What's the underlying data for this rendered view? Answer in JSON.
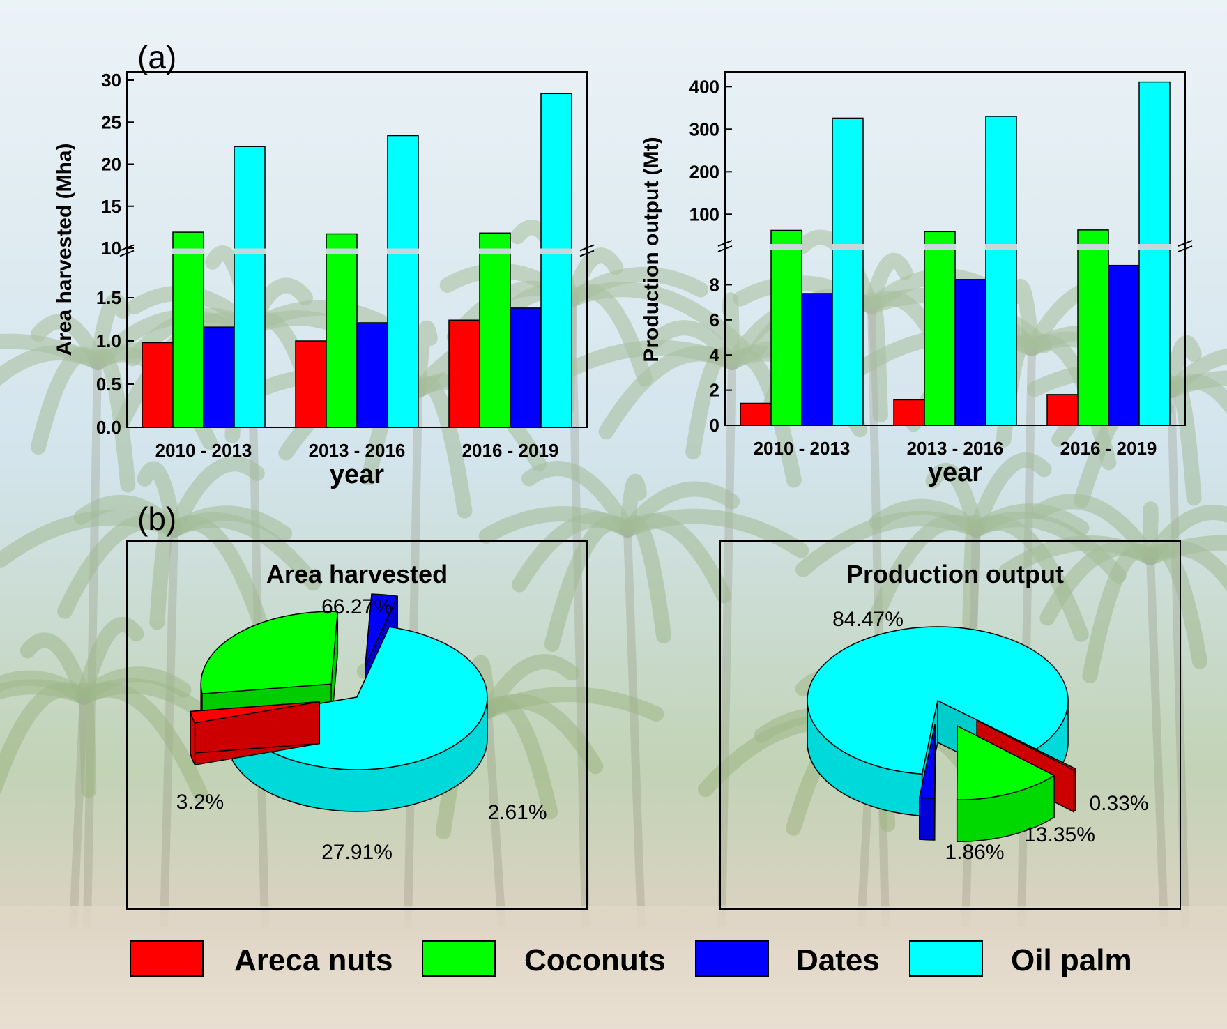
{
  "colors": {
    "Areca nuts": "#ff0000",
    "Coconuts": "#00ff00",
    "Dates": "#0000ff",
    "Oil palm": "#00ffff",
    "sky_top": "#e9f1f6",
    "sky_bottom": "#c9dfea",
    "foliage": "#a9c08a",
    "ground": "#e8dccb"
  },
  "panel_labels": {
    "a": "(a)",
    "b": "(b)"
  },
  "legend": [
    "Areca nuts",
    "Coconuts",
    "Dates",
    "Oil palm"
  ],
  "chart_data": [
    {
      "type": "bar",
      "id": "area-bar-chart",
      "title": "",
      "ylabel": "Area harvested (Mha)",
      "xlabel": "year",
      "categories": [
        "2010 - 2013",
        "2013 - 2016",
        "2016 - 2019"
      ],
      "series": [
        {
          "name": "Areca nuts",
          "values": [
            0.98,
            1.0,
            1.24
          ]
        },
        {
          "name": "Coconuts",
          "values": [
            11.9,
            11.7,
            11.8
          ]
        },
        {
          "name": "Dates",
          "values": [
            1.16,
            1.21,
            1.38
          ]
        },
        {
          "name": "Oil palm",
          "values": [
            22.1,
            23.4,
            28.4
          ]
        }
      ],
      "broken_axis": {
        "lower": {
          "ylim": [
            0,
            2.0
          ],
          "ticks": [
            0.0,
            0.5,
            1.0,
            1.5
          ],
          "tick_labels": [
            "0.0",
            "0.5",
            "1.0",
            "1.5"
          ]
        },
        "upper": {
          "ylim": [
            10,
            30
          ],
          "ticks": [
            10,
            15,
            20,
            25,
            30
          ],
          "tick_labels": [
            "10",
            "15",
            "20",
            "25",
            "30"
          ]
        }
      }
    },
    {
      "type": "bar",
      "id": "production-bar-chart",
      "title": "",
      "ylabel": "Production output (Mt)",
      "xlabel": "year",
      "categories": [
        "2010 - 2013",
        "2013 - 2016",
        "2016 - 2019"
      ],
      "series": [
        {
          "name": "Areca nuts",
          "values": [
            1.25,
            1.45,
            1.75
          ]
        },
        {
          "name": "Coconuts",
          "values": [
            62,
            59,
            63
          ]
        },
        {
          "name": "Dates",
          "values": [
            7.5,
            8.3,
            9.1
          ]
        },
        {
          "name": "Oil palm",
          "values": [
            326,
            330,
            411
          ]
        }
      ],
      "broken_axis": {
        "lower": {
          "ylim": [
            0,
            10
          ],
          "ticks": [
            0,
            2,
            4,
            6,
            8
          ],
          "tick_labels": [
            "0",
            "2",
            "4",
            "6",
            "8"
          ]
        },
        "upper": {
          "ylim": [
            30,
            430
          ],
          "ticks": [
            100,
            200,
            300,
            400
          ],
          "tick_labels": [
            "100",
            "200",
            "300",
            "400"
          ]
        }
      }
    },
    {
      "type": "pie",
      "id": "area-pie-chart",
      "title": "Area harvested",
      "slices": [
        {
          "name": "Oil palm",
          "value": 66.27,
          "label": "66.27%"
        },
        {
          "name": "Areca nuts",
          "value": 2.61,
          "label": "2.61%"
        },
        {
          "name": "Coconuts",
          "value": 27.91,
          "label": "27.91%"
        },
        {
          "name": "Dates",
          "value": 3.2,
          "label": "3.2%"
        }
      ]
    },
    {
      "type": "pie",
      "id": "production-pie-chart",
      "title": "Production output",
      "slices": [
        {
          "name": "Oil palm",
          "value": 84.47,
          "label": "84.47%"
        },
        {
          "name": "Areca nuts",
          "value": 0.33,
          "label": "0.33%"
        },
        {
          "name": "Coconuts",
          "value": 13.35,
          "label": "13.35%"
        },
        {
          "name": "Dates",
          "value": 1.86,
          "label": "1.86%"
        }
      ]
    }
  ]
}
